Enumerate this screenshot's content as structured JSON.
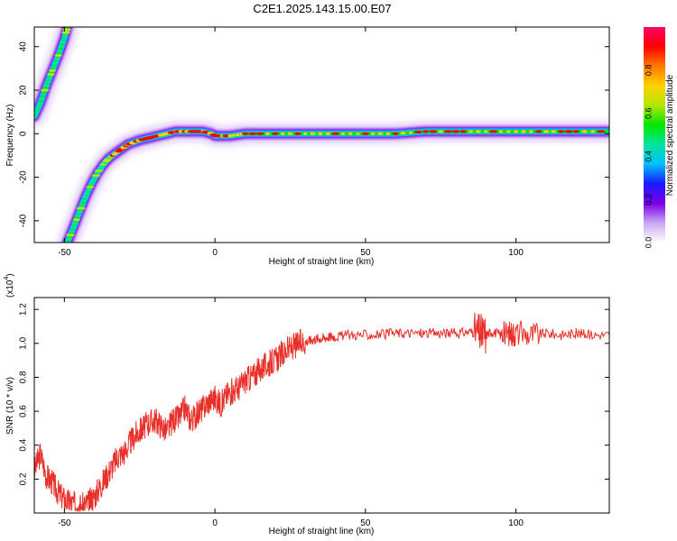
{
  "title": "C2E1.2025.143.15.00.E07",
  "colors": {
    "snr_line": "#e8302a",
    "frame": "#000000",
    "background": "#ffffff"
  },
  "chart_data": [
    {
      "type": "heatmap",
      "name": "spectrogram",
      "xlabel": "Height of straight line (km)",
      "ylabel": "Frequency (Hz)",
      "xlim": [
        -60,
        131
      ],
      "ylim": [
        -50,
        49
      ],
      "xticks": [
        -50,
        0,
        50,
        100
      ],
      "yticks": [
        -40,
        -20,
        0,
        20,
        40
      ],
      "colorbar": {
        "label": "Normalized spectral amplitude",
        "range": [
          0,
          1
        ],
        "ticks": [
          0.0,
          0.2,
          0.4,
          0.6,
          0.8
        ],
        "colormap": [
          "#ffffff",
          "#c9a8f0",
          "#7a00e6",
          "#1a1aff",
          "#00bfff",
          "#00e5a0",
          "#00e600",
          "#b4e600",
          "#ffd200",
          "#ff7a00",
          "#ff0000",
          "#ff0066"
        ]
      },
      "traces": [
        {
          "x": [
            -60,
            -58,
            -56,
            -54,
            -52,
            -50,
            -49
          ],
          "y": [
            8,
            14,
            22,
            29,
            36,
            44,
            49
          ]
        },
        {
          "x": [
            -49,
            -47,
            -45,
            -43,
            -41,
            -39,
            -37,
            -35,
            -33,
            -31,
            -29,
            -27,
            -25,
            -22,
            -19,
            -16,
            -13,
            -10,
            -7,
            -4,
            -1,
            0,
            5,
            10,
            20,
            30,
            40,
            50,
            60,
            70,
            80,
            90,
            100,
            110,
            120,
            131
          ],
          "y": [
            -50,
            -43,
            -36,
            -29,
            -23,
            -18,
            -14,
            -11,
            -9,
            -7,
            -5,
            -4,
            -3,
            -2,
            -1,
            0,
            1,
            1,
            1,
            1,
            0,
            -1,
            -1,
            0,
            0,
            0,
            0,
            0,
            0,
            1,
            1,
            1,
            1,
            1,
            1,
            1
          ]
        }
      ]
    },
    {
      "type": "line",
      "name": "snr",
      "xlabel": "Height of straight line (km)",
      "ylabel": "SNR (10 * v/v)",
      "yscale_label": "(x10^4)",
      "xlim": [
        -60,
        131
      ],
      "ylim": [
        0,
        1.27
      ],
      "xticks": [
        -50,
        0,
        50,
        100
      ],
      "yticks": [
        0.2,
        0.4,
        0.6,
        0.8,
        1.0,
        1.2
      ],
      "series": [
        {
          "x": [
            -60,
            -58,
            -56,
            -54,
            -52,
            -50,
            -48,
            -46,
            -44,
            -42,
            -40,
            -38,
            -36,
            -34,
            -32,
            -30,
            -28,
            -26,
            -24,
            -22,
            -20,
            -18,
            -16,
            -14,
            -12,
            -10,
            -8,
            -6,
            -4,
            -2,
            0,
            2,
            4,
            6,
            8,
            10,
            12,
            14,
            16,
            18,
            20,
            22,
            24,
            26,
            28,
            30,
            32,
            34,
            36,
            38,
            40,
            45,
            50,
            55,
            60,
            65,
            70,
            75,
            80,
            85,
            88,
            90,
            92,
            95,
            98,
            100,
            105,
            110,
            115,
            120,
            125,
            131
          ],
          "y": [
            0.25,
            0.35,
            0.22,
            0.18,
            0.12,
            0.08,
            0.06,
            0.05,
            0.04,
            0.06,
            0.1,
            0.16,
            0.22,
            0.28,
            0.34,
            0.36,
            0.42,
            0.47,
            0.5,
            0.53,
            0.55,
            0.52,
            0.48,
            0.55,
            0.56,
            0.62,
            0.55,
            0.58,
            0.62,
            0.66,
            0.68,
            0.64,
            0.7,
            0.72,
            0.74,
            0.78,
            0.8,
            0.83,
            0.86,
            0.88,
            0.9,
            0.93,
            0.96,
            0.98,
            1.0,
            1.01,
            1.02,
            1.03,
            1.03,
            1.04,
            1.04,
            1.05,
            1.05,
            1.05,
            1.06,
            1.06,
            1.06,
            1.06,
            1.06,
            1.07,
            1.06,
            1.05,
            1.07,
            1.05,
            1.06,
            1.06,
            1.05,
            1.06,
            1.05,
            1.06,
            1.05,
            1.05
          ]
        }
      ]
    }
  ]
}
